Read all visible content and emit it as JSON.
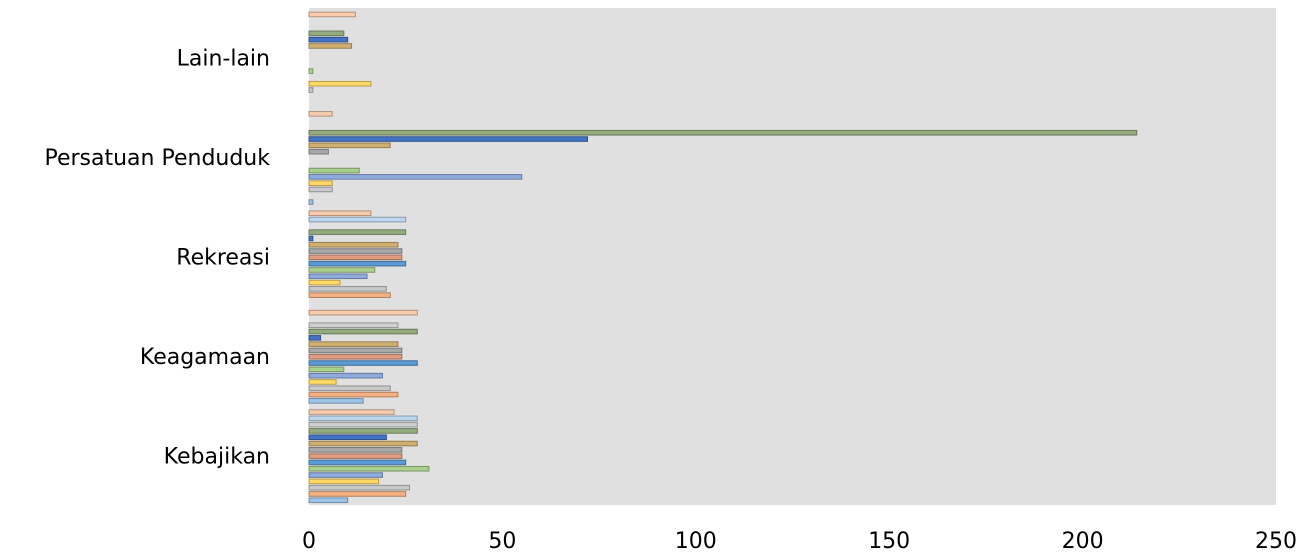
{
  "chart_data": {
    "type": "bar",
    "orientation": "horizontal",
    "title": "",
    "xlabel": "",
    "ylabel": "",
    "xlim": [
      0,
      250
    ],
    "x_ticks": [
      "0",
      "50",
      "100",
      "150",
      "200",
      "250"
    ],
    "grid": false,
    "legend": "none",
    "plot_background": "#e0e0e0",
    "categories": [
      "Kebajikan",
      "Keagamaan",
      "Rekreasi",
      "Persatuan Penduduk",
      "Lain-lain"
    ],
    "series": [
      {
        "color": "#9dc3e6",
        "values": [
          10,
          14,
          0,
          1,
          0
        ]
      },
      {
        "color": "#f4b183",
        "values": [
          25,
          23,
          21,
          0,
          0
        ]
      },
      {
        "color": "#c9c9c9",
        "values": [
          26,
          21,
          20,
          6,
          1
        ]
      },
      {
        "color": "#ffd966",
        "values": [
          18,
          7,
          8,
          6,
          16
        ]
      },
      {
        "color": "#8faadc",
        "values": [
          19,
          19,
          15,
          55,
          0
        ]
      },
      {
        "color": "#a9d18e",
        "values": [
          31,
          9,
          17,
          13,
          1
        ]
      },
      {
        "color": "#5b9bd5",
        "values": [
          25,
          28,
          25,
          0,
          0
        ]
      },
      {
        "color": "#e09b80",
        "values": [
          24,
          24,
          24,
          0,
          0
        ]
      },
      {
        "color": "#a8a8a8",
        "values": [
          24,
          24,
          24,
          5,
          0
        ]
      },
      {
        "color": "#d0b070",
        "values": [
          28,
          23,
          23,
          21,
          11
        ]
      },
      {
        "color": "#4472c4",
        "values": [
          20,
          3,
          1,
          72,
          10
        ]
      },
      {
        "color": "#93ab7f",
        "values": [
          28,
          28,
          25,
          214,
          9
        ]
      },
      {
        "color": "#cfcfcf",
        "values": [
          28,
          23,
          0,
          0,
          0
        ]
      },
      {
        "color": "#bdd7ee",
        "values": [
          28,
          0,
          25,
          0,
          0
        ]
      },
      {
        "color": "#f8cbad",
        "values": [
          22,
          28,
          16,
          6,
          12
        ]
      }
    ]
  }
}
